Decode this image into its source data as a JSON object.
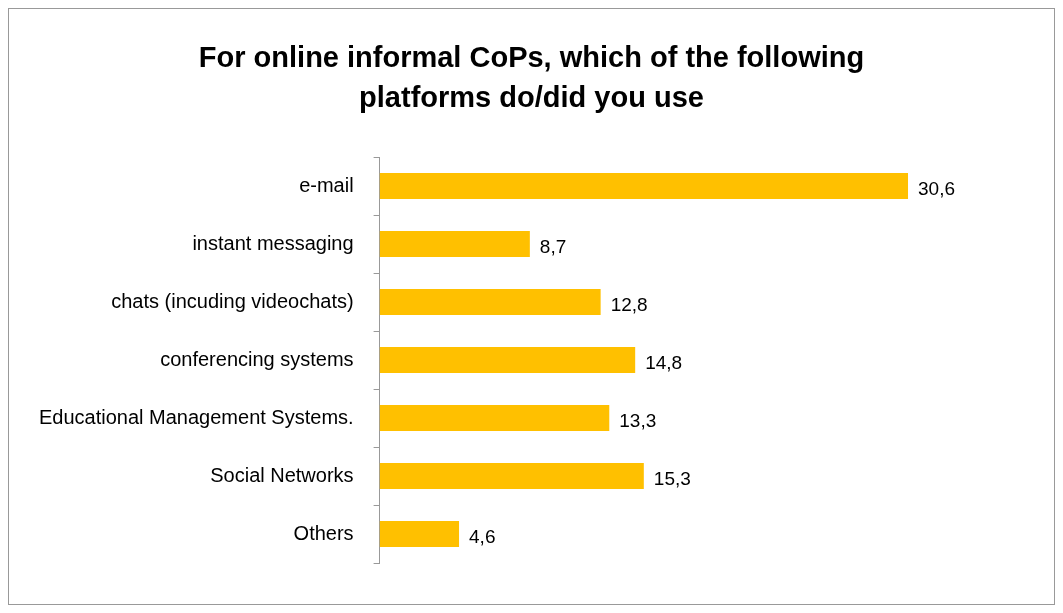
{
  "chart_data": {
    "type": "bar",
    "orientation": "horizontal",
    "title": "For online informal CoPs, which of the following platforms do/did you use",
    "categories": [
      "e-mail",
      "instant messaging",
      "chats (incuding videochats)",
      "conferencing systems",
      "Educational Management Systems.",
      "Social Networks",
      "Others"
    ],
    "values": [
      30.6,
      8.7,
      12.8,
      14.8,
      13.3,
      15.3,
      4.6
    ],
    "value_labels": [
      "30,6",
      "8,7",
      "12,8",
      "14,8",
      "13,3",
      "15,3",
      "4,6"
    ],
    "color": "#ffc000"
  }
}
